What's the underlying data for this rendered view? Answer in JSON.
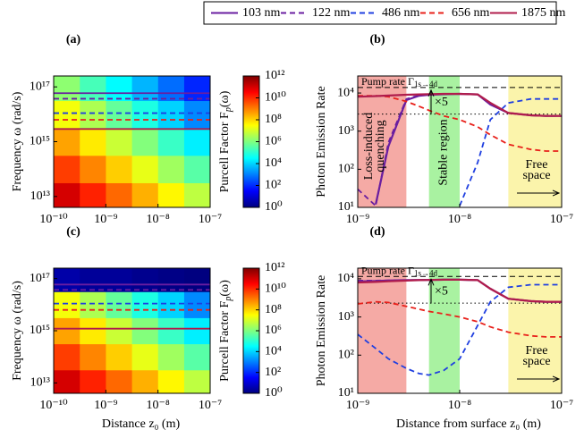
{
  "legend_position": "top",
  "chart_data": [
    {
      "type": "heatmap",
      "label": "(a)",
      "ylabel": "Frequency ω (rad/s)",
      "x": [
        1.8e-10,
        5.6e-10,
        1.8e-09,
        5.6e-09,
        1.8e-08,
        5.6e-08
      ],
      "y": [
        10000000000000.0,
        100000000000000.0,
        1000000000000000.0,
        1e+16,
        1e+17
      ],
      "z": [
        [
          100000000000.0,
          13000000000.0,
          1900000000.0,
          270000000.0,
          38000000.0,
          5400000.0
        ],
        [
          6000000000.0,
          850000000.0,
          120000000.0,
          17000000.0,
          2400000.0,
          340000.0
        ],
        [
          380000000.0,
          54000000.0,
          7600000.0,
          1100000.0,
          150000.0,
          21000.0
        ],
        [
          24000000.0,
          3400000.0,
          480000.0,
          68000.0,
          9500.0,
          1300.0
        ],
        [
          1500000.0,
          210000.0,
          30000.0,
          4300.0,
          600,
          85
        ]
      ],
      "xlim": [
        1e-10,
        1e-07
      ],
      "ylim": [
        4000000000000.0,
        2.5e+17
      ],
      "log_x": true,
      "log_y": true,
      "xticks": [
        {
          "value": 1e-10,
          "label": "10⁻¹⁰"
        },
        {
          "value": 1e-09,
          "label": "10⁻⁹"
        },
        {
          "value": 1e-08,
          "label": "10⁻⁸"
        },
        {
          "value": 1e-07,
          "label": "10⁻⁷"
        }
      ],
      "yticks": [
        {
          "value": 10000000000000.0,
          "label": "10¹³"
        },
        {
          "value": 1000000000000000.0,
          "label": "10¹⁵"
        },
        {
          "value": 1e+17,
          "label": "10¹⁷"
        }
      ],
      "colormap": "jet",
      "colorbar": {
        "label": [
          "Purcell Factor F",
          "p",
          "(ω)"
        ],
        "lim": [
          1,
          1000000000000.0
        ],
        "log": true,
        "ticks": [
          {
            "value": 1,
            "label": "10⁰"
          },
          {
            "value": 100,
            "label": "10²"
          },
          {
            "value": 10000,
            "label": "10⁴"
          },
          {
            "value": 1000000.0,
            "label": "10⁶"
          },
          {
            "value": 100000000.0,
            "label": "10⁸"
          },
          {
            "value": 10000000000.0,
            "label": "10¹⁰"
          },
          {
            "value": 1000000000000.0,
            "label": "10¹²"
          }
        ]
      },
      "hlines": [
        {
          "value": 5.9e+16,
          "color": "#6a1ea0",
          "dash": false
        },
        {
          "value": 3.7e+16,
          "color": "#6a1ea0",
          "dash": true
        },
        {
          "value": 1.1e+16,
          "color": "#1f3fe0",
          "dash": true
        },
        {
          "value": 6300000000000000.0,
          "color": "#e8201a",
          "dash": true
        },
        {
          "value": 2900000000000000.0,
          "color": "#b01c4c",
          "dash": false
        }
      ]
    },
    {
      "type": "line",
      "label": "(b)",
      "ylabel": "Photon Emission Rate",
      "x": [
        1e-09,
        1.5e-09,
        2e-09,
        3e-09,
        4e-09,
        5e-09,
        7e-09,
        1e-08,
        1.5e-08,
        2e-08,
        3e-08,
        5e-08,
        7e-08,
        1e-07
      ],
      "series": [
        {
          "name": "103 nm",
          "color": "#6a1ea0",
          "dash": false,
          "values": [
            null,
            12,
            400,
            6500,
            8500,
            9000,
            9300,
            9500,
            9200,
            5000,
            3000,
            2600,
            2500,
            2500
          ]
        },
        {
          "name": "122 nm",
          "color": "#6a1ea0",
          "dash": true,
          "values": [
            30,
            11,
            500,
            7000,
            8700,
            9100,
            9400,
            9500,
            9200,
            5000,
            3000,
            2600,
            2500,
            2500
          ]
        },
        {
          "name": "486 nm",
          "color": "#1f3fe0",
          "dash": true,
          "values": [
            null,
            null,
            null,
            null,
            null,
            null,
            null,
            11,
            150,
            2000,
            5500,
            7000,
            7000,
            7000
          ]
        },
        {
          "name": "656 nm",
          "color": "#e8201a",
          "dash": true,
          "values": [
            8500,
            8500,
            8000,
            6000,
            4500,
            3500,
            2500,
            2000,
            1300,
            800,
            450,
            330,
            300,
            300
          ]
        },
        {
          "name": "1875 nm",
          "color": "#b01c4c",
          "dash": false,
          "values": [
            8000,
            8300,
            8600,
            9000,
            9200,
            9300,
            9500,
            9500,
            9200,
            5500,
            3000,
            2600,
            2500,
            2500
          ]
        }
      ],
      "xlim": [
        1e-09,
        1e-07
      ],
      "ylim": [
        10,
        28000
      ],
      "log_x": true,
      "log_y": true,
      "xticks": [
        {
          "value": 1e-09,
          "label": "10⁻⁹"
        },
        {
          "value": 1e-08,
          "label": "10⁻⁸"
        },
        {
          "value": 1e-07,
          "label": "10⁻⁷"
        }
      ],
      "yticks": [
        {
          "value": 10,
          "label": "10¹"
        },
        {
          "value": 100,
          "label": "10²"
        },
        {
          "value": 1000,
          "label": "10³"
        },
        {
          "value": 10000,
          "label": "10⁴"
        }
      ],
      "regions": [
        {
          "x": [
            1e-09,
            3e-09
          ],
          "color": "#f5aaa5"
        },
        {
          "x": [
            5e-09,
            1e-08
          ],
          "color": "#a9f2a1"
        },
        {
          "x": [
            3e-08,
            1e-07
          ],
          "color": "#fbf4ab"
        }
      ],
      "reflines": [
        {
          "value": 14000,
          "style": "dashed"
        },
        {
          "value": 2800,
          "style": "dotted"
        }
      ],
      "annotations": {
        "pump": [
          "Pump rate Γ",
          "1s→4d"
        ],
        "factor": "×5",
        "quench": [
          "Loss-induced",
          "quenching"
        ],
        "stable": "Stable region",
        "free": [
          "Free",
          "space"
        ]
      }
    },
    {
      "type": "heatmap",
      "label": "(c)",
      "ylabel": "Frequency ω (rad/s)",
      "xlabel": "Distance z₀ (m)",
      "x": [
        1.8e-10,
        5.6e-10,
        1.8e-09,
        5.6e-09,
        1.8e-08,
        5.6e-08
      ],
      "y": [
        10000000000000.0,
        100000000000000.0,
        1000000000000000.0,
        1e+16,
        1e+17
      ],
      "z": [
        [
          100000000000.0,
          13000000000.0,
          1900000000.0,
          270000000.0,
          38000000.0,
          5400000.0
        ],
        [
          6000000000.0,
          850000000.0,
          120000000.0,
          17000000.0,
          2400000.0,
          340000.0
        ],
        [
          380000000.0,
          54000000.0,
          7600000.0,
          1100000.0,
          150000.0,
          21000.0
        ],
        [
          24000000.0,
          3400000.0,
          480000.0,
          68000.0,
          9500.0,
          1300.0
        ],
        [
          3,
          2,
          2,
          1.5,
          1.2,
          1
        ]
      ],
      "xlim": [
        1e-10,
        1e-07
      ],
      "ylim": [
        4000000000000.0,
        2.5e+17
      ],
      "log_x": true,
      "log_y": true,
      "xticks": [
        {
          "value": 1e-10,
          "label": "10⁻¹⁰"
        },
        {
          "value": 1e-09,
          "label": "10⁻⁹"
        },
        {
          "value": 1e-08,
          "label": "10⁻⁸"
        },
        {
          "value": 1e-07,
          "label": "10⁻⁷"
        }
      ],
      "yticks": [
        {
          "value": 10000000000000.0,
          "label": "10¹³"
        },
        {
          "value": 1000000000000000.0,
          "label": "10¹⁵"
        },
        {
          "value": 1e+17,
          "label": "10¹⁷"
        }
      ],
      "colormap": "jet",
      "colorbar": {
        "label": [
          "Purcell Factor F",
          "p",
          "(ω)"
        ],
        "lim": [
          1,
          1000000000000.0
        ],
        "log": true,
        "ticks": [
          {
            "value": 1,
            "label": "10⁰"
          },
          {
            "value": 100,
            "label": "10²"
          },
          {
            "value": 10000,
            "label": "10⁴"
          },
          {
            "value": 1000000.0,
            "label": "10⁶"
          },
          {
            "value": 100000000.0,
            "label": "10⁸"
          },
          {
            "value": 10000000000.0,
            "label": "10¹⁰"
          },
          {
            "value": 1000000000000.0,
            "label": "10¹²"
          }
        ]
      },
      "hlines": [
        {
          "value": 5.9e+16,
          "color": "#6a1ea0",
          "dash": false
        },
        {
          "value": 3.7e+16,
          "color": "#6a1ea0",
          "dash": true
        },
        {
          "value": 1.1e+16,
          "color": "#1f3fe0",
          "dash": true
        },
        {
          "value": 6300000000000000.0,
          "color": "#e8201a",
          "dash": true
        },
        {
          "value": 1200000000000000.0,
          "color": "#b01c4c",
          "dash": false
        }
      ]
    },
    {
      "type": "line",
      "label": "(d)",
      "ylabel": "Photon Emission Rate",
      "xlabel": "Distance from surface z₀ (m)",
      "x": [
        1e-09,
        1.5e-09,
        2e-09,
        3e-09,
        4e-09,
        5e-09,
        7e-09,
        1e-08,
        1.5e-08,
        2e-08,
        3e-08,
        5e-08,
        7e-08,
        1e-07
      ],
      "series": [
        {
          "name": "103 nm",
          "color": "#6a1ea0",
          "dash": false,
          "values": [
            8500,
            8800,
            9000,
            9200,
            9300,
            9300,
            9500,
            9500,
            9200,
            5500,
            3000,
            2600,
            2500,
            2500
          ]
        },
        {
          "name": "122 nm",
          "color": "#6a1ea0",
          "dash": true,
          "values": [
            9000,
            9000,
            9100,
            9200,
            9300,
            9300,
            9500,
            9500,
            9200,
            5500,
            3000,
            2600,
            2500,
            2500
          ]
        },
        {
          "name": "486 nm",
          "color": "#1f3fe0",
          "dash": true,
          "values": [
            350,
            150,
            80,
            45,
            33,
            30,
            40,
            80,
            600,
            2500,
            6000,
            7000,
            7000,
            7000
          ]
        },
        {
          "name": "656 nm",
          "color": "#e8201a",
          "dash": true,
          "values": [
            2200,
            2500,
            2400,
            1900,
            1600,
            1400,
            1200,
            1000,
            750,
            550,
            400,
            320,
            300,
            300
          ]
        },
        {
          "name": "1875 nm",
          "color": "#b01c4c",
          "dash": false,
          "values": [
            8000,
            8300,
            8600,
            9000,
            9200,
            9300,
            9500,
            9500,
            9200,
            5500,
            3000,
            2600,
            2500,
            2500
          ]
        }
      ],
      "xlim": [
        1e-09,
        1e-07
      ],
      "ylim": [
        10,
        19000
      ],
      "log_x": true,
      "log_y": true,
      "xticks": [
        {
          "value": 1e-09,
          "label": "10⁻⁹"
        },
        {
          "value": 1e-08,
          "label": "10⁻⁸"
        },
        {
          "value": 1e-07,
          "label": "10⁻⁷"
        }
      ],
      "yticks": [
        {
          "value": 10,
          "label": "10¹"
        },
        {
          "value": 100,
          "label": "10²"
        },
        {
          "value": 1000,
          "label": "10³"
        },
        {
          "value": 10000,
          "label": "10⁴"
        }
      ],
      "regions": [
        {
          "x": [
            1e-09,
            3e-09
          ],
          "color": "#f5aaa5"
        },
        {
          "x": [
            5e-09,
            1e-08
          ],
          "color": "#a9f2a1"
        },
        {
          "x": [
            3e-08,
            1e-07
          ],
          "color": "#fbf4ab"
        }
      ],
      "reflines": [
        {
          "value": 11500,
          "style": "dashed"
        },
        {
          "value": 2300,
          "style": "dotted"
        }
      ],
      "annotations": {
        "pump": [
          "Pump rate Γ",
          "1s→4d"
        ],
        "factor": "×5",
        "free": [
          "Free",
          "space"
        ]
      }
    }
  ]
}
